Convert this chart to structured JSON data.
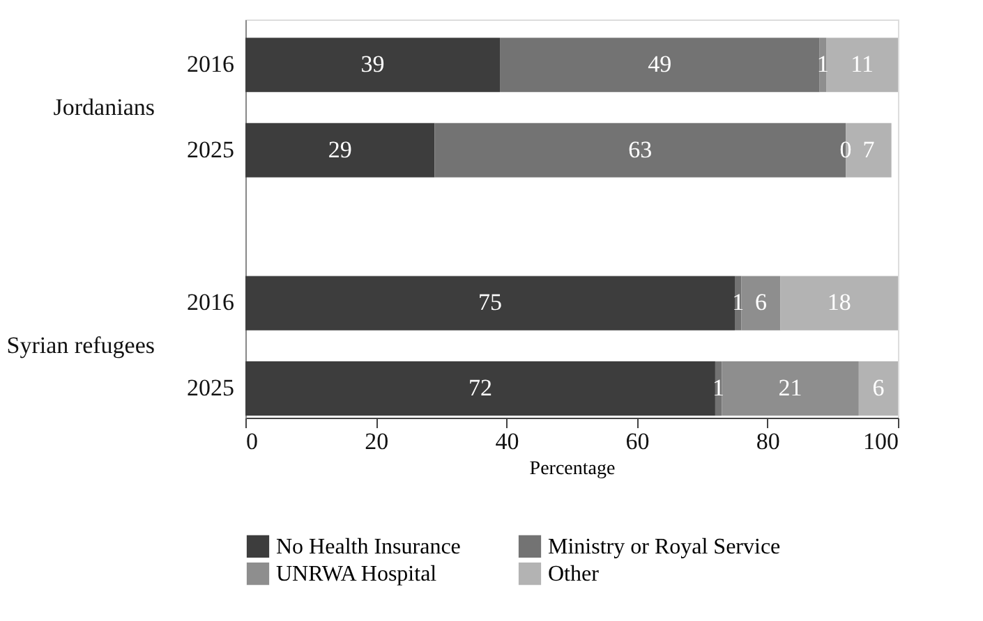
{
  "chart_data": {
    "type": "bar",
    "orientation": "horizontal",
    "stacked": true,
    "data_labels": true,
    "categories": [
      "2016",
      "2025",
      "2016",
      "2025"
    ],
    "annotations": [
      "Jordanians",
      "Syrian refugees"
    ],
    "xlabel": "Percentage",
    "xlim": [
      0,
      100
    ],
    "xticks": [
      0,
      20,
      40,
      60,
      80,
      100
    ],
    "grid": false,
    "legend": "bottom",
    "series": [
      {
        "name": "No Health Insurance",
        "color": "#3d3d3d",
        "values": [
          39,
          29,
          75,
          72
        ]
      },
      {
        "name": "Ministry or Royal Service",
        "color": "#737373",
        "values": [
          49,
          63,
          1,
          1
        ]
      },
      {
        "name": "UNRWA Hospital",
        "color": "#8e8e8e",
        "values": [
          1,
          0,
          6,
          21
        ]
      },
      {
        "name": "Other",
        "color": "#b3b3b3",
        "values": [
          11,
          7,
          18,
          6
        ]
      }
    ]
  }
}
